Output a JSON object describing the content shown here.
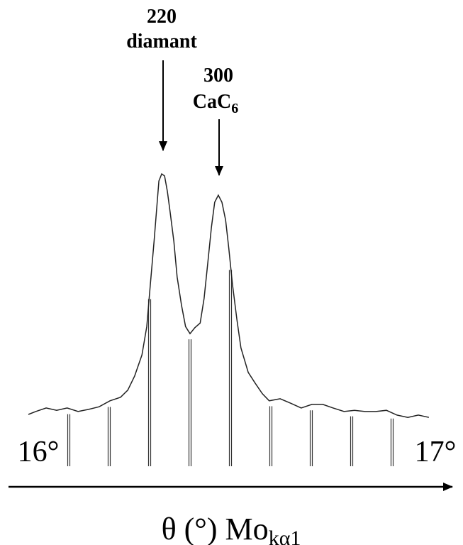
{
  "chart_data": {
    "type": "line",
    "xlabel": {
      "text": "θ (°) Mo",
      "sub": "kα1"
    },
    "annotations": [
      {
        "lines": [
          "220",
          "diamant"
        ]
      },
      {
        "top": "300",
        "text": "CaC",
        "sub": "6"
      }
    ],
    "xlim": [
      16,
      17
    ],
    "ylim": [
      0,
      100
    ],
    "xticks": [
      {
        "value": 16,
        "label": "16°"
      },
      {
        "value": 17,
        "label": "17°"
      }
    ],
    "minor_xticks": [
      16.1,
      16.2,
      16.3,
      16.4,
      16.5,
      16.6,
      16.7,
      16.8,
      16.9
    ],
    "color": "#222222",
    "x": [
      16.0,
      16.018,
      16.044,
      16.07,
      16.096,
      16.123,
      16.149,
      16.175,
      16.202,
      16.228,
      16.246,
      16.263,
      16.281,
      16.293,
      16.302,
      16.311,
      16.318,
      16.323,
      16.33,
      16.337,
      16.344,
      16.351,
      16.36,
      16.368,
      16.379,
      16.389,
      16.4,
      16.412,
      16.425,
      16.435,
      16.444,
      16.453,
      16.461,
      16.47,
      16.479,
      16.488,
      16.496,
      16.505,
      16.516,
      16.526,
      16.544,
      16.561,
      16.579,
      16.596,
      16.623,
      16.649,
      16.675,
      16.702,
      16.728,
      16.754,
      16.781,
      16.807,
      16.833,
      16.86,
      16.886,
      16.912,
      16.939,
      16.965,
      16.991
    ],
    "values": [
      17.5,
      18.5,
      19.7,
      18.9,
      19.7,
      18.5,
      19.2,
      20.1,
      22.1,
      23.3,
      25.7,
      30.5,
      37.6,
      47.2,
      61.6,
      76.0,
      88.0,
      96.4,
      98.8,
      98.1,
      92.8,
      85.6,
      76.0,
      64.0,
      54.4,
      47.2,
      44.8,
      46.8,
      48.4,
      56.8,
      68.8,
      80.8,
      89.2,
      91.6,
      89.2,
      83.2,
      73.6,
      61.6,
      49.6,
      40.0,
      31.7,
      28.1,
      24.5,
      22.1,
      22.8,
      21.3,
      19.7,
      20.9,
      20.9,
      19.7,
      18.5,
      18.9,
      18.5,
      18.5,
      18.9,
      17.3,
      16.5,
      17.3,
      16.5
    ]
  }
}
